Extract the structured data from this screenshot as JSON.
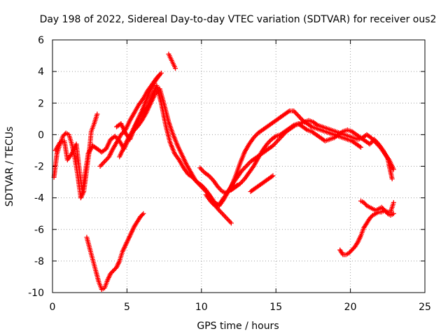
{
  "chart_data": {
    "type": "scatter",
    "title": "Day 198 of 2022, Sidereal Day-to-day VTEC variation (SDTVAR) for receiver ous2",
    "xlabel": "GPS time / hours",
    "ylabel": "SDTVAR / TECUs",
    "xlim": [
      0,
      25
    ],
    "ylim": [
      -10,
      6
    ],
    "xticks": [
      0,
      5,
      10,
      15,
      20,
      25
    ],
    "yticks": [
      -10,
      -8,
      -6,
      -4,
      -2,
      0,
      2,
      4,
      6
    ],
    "grid": true,
    "marker": "+",
    "series": [
      {
        "name": "ous2",
        "color": "#ff0000",
        "segments": [
          {
            "x": [
              0.1,
              0.3,
              0.5,
              0.7,
              0.9,
              1.1,
              1.3,
              1.5,
              1.7,
              1.9,
              2.1,
              2.3,
              2.5,
              2.6,
              2.8,
              3.0
            ],
            "y": [
              -2.7,
              -1.2,
              -0.6,
              -0.1,
              0.1,
              0.0,
              -0.6,
              -1.5,
              -2.6,
              -4.0,
              -3.6,
              -2.2,
              -0.8,
              0.2,
              0.7,
              1.3
            ]
          },
          {
            "x": [
              0.2,
              0.5,
              0.8,
              1.0,
              1.3,
              1.6,
              1.8,
              2.0,
              2.2,
              2.4
            ],
            "y": [
              -1.0,
              -0.5,
              -0.4,
              -1.6,
              -1.2,
              -0.6,
              -2.2,
              -3.6,
              -2.4,
              -1.2
            ]
          },
          {
            "x": [
              2.4,
              2.7,
              3.0,
              3.3,
              3.6,
              3.9,
              4.2,
              4.5,
              4.8,
              5.1,
              5.4,
              5.7,
              6.0,
              6.3,
              6.6,
              6.9,
              7.2
            ],
            "y": [
              -1.2,
              -0.7,
              -0.9,
              -1.1,
              -0.9,
              -0.3,
              -0.1,
              -0.4,
              -0.9,
              -0.3,
              0.3,
              0.9,
              1.5,
              2.2,
              2.9,
              3.4,
              3.8
            ]
          },
          {
            "x": [
              3.2,
              3.5,
              3.8,
              4.0,
              4.3,
              4.6,
              4.9,
              5.2,
              5.5,
              5.8,
              6.1,
              6.4,
              6.7,
              7.0,
              7.3
            ],
            "y": [
              -2.0,
              -1.7,
              -1.4,
              -1.0,
              -0.5,
              0.0,
              0.3,
              0.9,
              1.4,
              1.9,
              2.3,
              2.8,
              3.2,
              3.6,
              3.9
            ]
          },
          {
            "x": [
              4.3,
              4.6,
              4.9,
              5.2,
              5.5,
              5.8,
              6.1,
              6.4,
              6.7,
              7.0,
              7.3,
              7.6,
              7.9,
              8.2,
              8.5,
              8.8,
              9.1,
              9.4,
              9.7,
              10.0,
              10.3,
              10.6,
              10.9,
              11.2,
              11.5,
              11.8,
              12.1,
              12.4
            ],
            "y": [
              0.5,
              0.7,
              0.1,
              -0.3,
              0.4,
              1.0,
              1.3,
              1.8,
              2.5,
              3.1,
              2.0,
              0.6,
              -0.5,
              -1.2,
              -1.6,
              -2.1,
              -2.5,
              -2.7,
              -3.0,
              -3.2,
              -3.5,
              -3.9,
              -4.3,
              -4.5,
              -4.1,
              -3.6,
              -3.4,
              -3.2
            ]
          },
          {
            "x": [
              4.5,
              4.8,
              5.1,
              5.4,
              5.7,
              6.0,
              6.3,
              6.6,
              6.9,
              7.2,
              7.5,
              7.8,
              8.1,
              8.4,
              8.7,
              9.0,
              9.3,
              9.6,
              9.9,
              10.2,
              10.5,
              10.8,
              11.1,
              11.4,
              11.7,
              12.0
            ],
            "y": [
              -1.4,
              -0.8,
              -0.2,
              0.2,
              0.5,
              0.9,
              1.4,
              2.0,
              2.6,
              2.9,
              1.9,
              0.8,
              0.0,
              -0.7,
              -1.3,
              -1.9,
              -2.4,
              -2.9,
              -3.2,
              -3.5,
              -3.8,
              -4.3,
              -4.7,
              -5.0,
              -5.3,
              -5.6
            ]
          },
          {
            "x": [
              7.8,
              7.95,
              8.1,
              8.25
            ],
            "y": [
              5.1,
              4.8,
              4.5,
              4.2
            ]
          },
          {
            "x": [
              2.3,
              2.5,
              2.7,
              2.9,
              3.1,
              3.3,
              3.5,
              3.7,
              3.9,
              4.1,
              4.3,
              4.5,
              4.7,
              4.9,
              5.1,
              5.3,
              5.5,
              5.7,
              5.9,
              6.1
            ],
            "y": [
              -6.5,
              -7.2,
              -7.9,
              -8.6,
              -9.3,
              -9.8,
              -9.7,
              -9.2,
              -8.8,
              -8.6,
              -8.4,
              -8.0,
              -7.4,
              -7.0,
              -6.6,
              -6.2,
              -5.8,
              -5.5,
              -5.2,
              -5.0
            ]
          },
          {
            "x": [
              9.9,
              10.2,
              10.5,
              10.8,
              11.1,
              11.4,
              11.7,
              12.0,
              12.3,
              12.6,
              12.9,
              13.2,
              13.5,
              13.8,
              14.1,
              14.4,
              14.7,
              15.0,
              15.3,
              15.6,
              15.9,
              16.2,
              16.5,
              16.8,
              17.1,
              17.4,
              17.7,
              18.0,
              18.3,
              18.6,
              18.9,
              19.2,
              19.5,
              19.8,
              20.1,
              20.4,
              20.7
            ],
            "y": [
              -2.1,
              -2.4,
              -2.6,
              -2.9,
              -3.3,
              -3.6,
              -3.7,
              -3.3,
              -2.6,
              -1.8,
              -1.1,
              -0.6,
              -0.2,
              0.1,
              0.3,
              0.5,
              0.7,
              0.9,
              1.1,
              1.3,
              1.5,
              1.5,
              1.2,
              0.9,
              0.7,
              0.5,
              0.4,
              0.3,
              0.2,
              0.1,
              0.0,
              -0.1,
              -0.2,
              -0.3,
              -0.4,
              -0.6,
              -0.8
            ]
          },
          {
            "x": [
              10.3,
              10.6,
              10.9,
              11.2,
              11.5,
              11.8,
              12.1,
              12.4,
              12.7,
              13.0,
              13.3,
              13.6,
              13.9,
              14.2,
              14.5,
              14.8,
              15.1,
              15.4,
              15.7,
              16.0,
              16.3,
              16.6,
              16.9,
              17.2,
              17.5,
              17.8,
              18.1,
              18.4,
              18.7,
              19.0,
              19.3,
              19.6,
              19.9,
              20.2,
              20.5,
              20.8,
              21.1,
              21.4,
              21.7,
              22.0,
              22.3,
              22.6,
              22.9
            ],
            "y": [
              -3.8,
              -4.2,
              -4.5,
              -4.4,
              -4.0,
              -3.6,
              -3.1,
              -2.7,
              -2.3,
              -2.0,
              -1.7,
              -1.5,
              -1.3,
              -1.1,
              -0.9,
              -0.7,
              -0.4,
              -0.1,
              0.2,
              0.4,
              0.6,
              0.7,
              0.8,
              0.9,
              0.8,
              0.6,
              0.5,
              0.4,
              0.3,
              0.2,
              0.1,
              0.0,
              -0.1,
              -0.2,
              -0.3,
              -0.2,
              0.0,
              -0.2,
              -0.5,
              -0.8,
              -1.2,
              -1.6,
              -2.2
            ]
          },
          {
            "x": [
              12.0,
              12.3,
              12.6,
              12.9,
              13.2,
              13.5,
              13.8,
              14.1,
              14.4,
              14.7,
              15.0,
              15.3,
              15.6,
              15.9,
              16.2,
              16.5,
              16.8,
              17.1,
              17.4,
              17.7,
              18.0,
              18.3,
              18.6,
              18.9,
              19.2,
              19.5,
              19.8,
              20.1,
              20.4,
              20.7,
              21.0,
              21.3,
              21.6,
              21.9,
              22.2,
              22.5,
              22.8
            ],
            "y": [
              -3.5,
              -3.3,
              -3.1,
              -2.8,
              -2.4,
              -2.0,
              -1.5,
              -1.0,
              -0.6,
              -0.3,
              -0.1,
              0.0,
              0.2,
              0.4,
              0.6,
              0.7,
              0.5,
              0.3,
              0.2,
              0.0,
              -0.2,
              -0.4,
              -0.3,
              -0.2,
              0.0,
              0.2,
              0.3,
              0.2,
              0.0,
              -0.2,
              -0.4,
              -0.6,
              -0.3,
              -0.6,
              -1.0,
              -1.5,
              -2.8
            ]
          },
          {
            "x": [
              13.3,
              13.6,
              13.9,
              14.2,
              14.5,
              14.8
            ],
            "y": [
              -3.6,
              -3.4,
              -3.2,
              -3.0,
              -2.8,
              -2.6
            ]
          },
          {
            "x": [
              19.3,
              19.5,
              19.7,
              19.9,
              20.1,
              20.3,
              20.5,
              20.7,
              20.9,
              21.1,
              21.3,
              21.5,
              21.7,
              21.9,
              22.1,
              22.3,
              22.5,
              22.7,
              22.9
            ],
            "y": [
              -7.3,
              -7.6,
              -7.6,
              -7.5,
              -7.3,
              -7.1,
              -6.8,
              -6.4,
              -5.9,
              -5.6,
              -5.3,
              -5.1,
              -5.0,
              -4.9,
              -4.9,
              -4.8,
              -4.9,
              -4.9,
              -4.3
            ]
          },
          {
            "x": [
              20.7,
              20.9,
              21.1,
              21.3,
              21.5,
              21.7,
              21.9,
              22.1,
              22.3,
              22.5,
              22.7,
              22.9
            ],
            "y": [
              -4.2,
              -4.3,
              -4.5,
              -4.6,
              -4.7,
              -4.8,
              -4.7,
              -4.6,
              -4.8,
              -5.0,
              -5.1,
              -5.0
            ]
          }
        ]
      }
    ]
  }
}
